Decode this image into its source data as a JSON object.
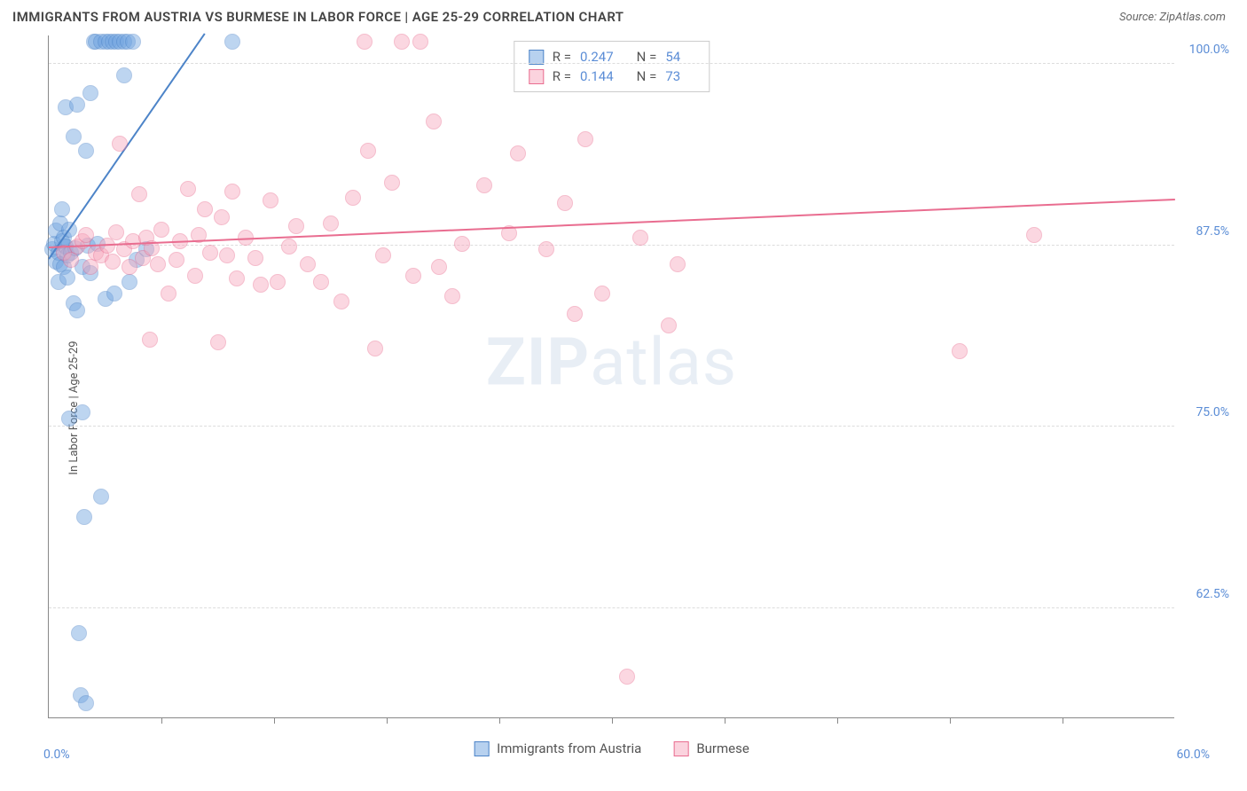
{
  "title": "IMMIGRANTS FROM AUSTRIA VS BURMESE IN LABOR FORCE | AGE 25-29 CORRELATION CHART",
  "source": "Source: ZipAtlas.com",
  "ylabel": "In Labor Force | Age 25-29",
  "watermark_a": "ZIP",
  "watermark_b": "atlas",
  "chart": {
    "type": "scatter",
    "xlim": [
      0,
      60
    ],
    "ylim": [
      55,
      102
    ],
    "x_ticks_minor": [
      6,
      12,
      18,
      24,
      30,
      36,
      42,
      48,
      54
    ],
    "y_grid": [
      62.5,
      75.0,
      87.5,
      100.0
    ],
    "y_tick_labels": [
      "62.5%",
      "75.0%",
      "87.5%",
      "100.0%"
    ],
    "x_label_min": "0.0%",
    "x_label_max": "60.0%",
    "background_color": "#ffffff",
    "grid_color": "#dcdcdc",
    "marker_radius": 9,
    "marker_opacity": 0.45,
    "series": [
      {
        "name": "Immigrants from Austria",
        "color": "#6fa3e0",
        "stroke": "#4d84c8",
        "r": "0.247",
        "n": "54",
        "trend": {
          "x1": 0,
          "y1": 86.5,
          "x2": 8.3,
          "y2": 102
        },
        "points": [
          [
            0.2,
            87.2
          ],
          [
            0.3,
            87.6
          ],
          [
            0.4,
            86.4
          ],
          [
            0.4,
            88.5
          ],
          [
            0.5,
            87.0
          ],
          [
            0.5,
            85.0
          ],
          [
            0.6,
            89.0
          ],
          [
            0.6,
            86.2
          ],
          [
            0.7,
            87.8
          ],
          [
            0.7,
            90.0
          ],
          [
            0.8,
            86.0
          ],
          [
            0.8,
            88.0
          ],
          [
            0.9,
            87.4
          ],
          [
            0.9,
            97.0
          ],
          [
            1.0,
            86.8
          ],
          [
            1.0,
            85.3
          ],
          [
            1.1,
            88.6
          ],
          [
            1.1,
            75.6
          ],
          [
            1.2,
            87.0
          ],
          [
            1.3,
            95.0
          ],
          [
            1.3,
            83.5
          ],
          [
            1.4,
            87.3
          ],
          [
            1.5,
            97.2
          ],
          [
            1.5,
            83.0
          ],
          [
            1.6,
            60.8
          ],
          [
            1.7,
            56.5
          ],
          [
            1.8,
            86.0
          ],
          [
            1.8,
            76.0
          ],
          [
            1.9,
            68.8
          ],
          [
            2.0,
            94.0
          ],
          [
            2.0,
            56.0
          ],
          [
            2.1,
            87.5
          ],
          [
            2.2,
            98.0
          ],
          [
            2.2,
            85.6
          ],
          [
            2.4,
            101.5
          ],
          [
            2.5,
            101.5
          ],
          [
            2.6,
            87.6
          ],
          [
            2.8,
            101.5
          ],
          [
            2.8,
            70.2
          ],
          [
            3.0,
            101.5
          ],
          [
            3.0,
            83.8
          ],
          [
            3.2,
            101.5
          ],
          [
            3.4,
            101.5
          ],
          [
            3.5,
            84.2
          ],
          [
            3.6,
            101.5
          ],
          [
            3.8,
            101.5
          ],
          [
            4.0,
            99.2
          ],
          [
            4.0,
            101.5
          ],
          [
            4.2,
            101.5
          ],
          [
            4.3,
            85.0
          ],
          [
            4.5,
            101.5
          ],
          [
            4.7,
            86.5
          ],
          [
            5.2,
            87.2
          ],
          [
            9.8,
            101.5
          ]
        ]
      },
      {
        "name": "Burmese",
        "color": "#f7a8bd",
        "stroke": "#e96d90",
        "r": "0.144",
        "n": "73",
        "trend": {
          "x1": 0,
          "y1": 87.3,
          "x2": 60,
          "y2": 90.6
        },
        "points": [
          [
            0.8,
            87.0
          ],
          [
            1.2,
            86.5
          ],
          [
            1.5,
            87.4
          ],
          [
            1.8,
            87.8
          ],
          [
            2.0,
            88.2
          ],
          [
            2.2,
            86.0
          ],
          [
            2.5,
            87.0
          ],
          [
            2.8,
            86.8
          ],
          [
            3.1,
            87.5
          ],
          [
            3.4,
            86.4
          ],
          [
            3.6,
            88.4
          ],
          [
            3.8,
            94.5
          ],
          [
            4.0,
            87.2
          ],
          [
            4.3,
            86.0
          ],
          [
            4.5,
            87.8
          ],
          [
            4.8,
            91.0
          ],
          [
            5.0,
            86.6
          ],
          [
            5.2,
            88.0
          ],
          [
            5.4,
            81.0
          ],
          [
            5.5,
            87.3
          ],
          [
            5.8,
            86.2
          ],
          [
            6.0,
            88.6
          ],
          [
            6.4,
            84.2
          ],
          [
            6.8,
            86.5
          ],
          [
            7.0,
            87.8
          ],
          [
            7.4,
            91.4
          ],
          [
            7.8,
            85.4
          ],
          [
            8.0,
            88.2
          ],
          [
            8.3,
            90.0
          ],
          [
            8.6,
            87.0
          ],
          [
            9.0,
            80.8
          ],
          [
            9.2,
            89.4
          ],
          [
            9.5,
            86.8
          ],
          [
            9.8,
            91.2
          ],
          [
            10.0,
            85.2
          ],
          [
            10.5,
            88.0
          ],
          [
            11.0,
            86.6
          ],
          [
            11.3,
            84.8
          ],
          [
            11.8,
            90.6
          ],
          [
            12.2,
            85.0
          ],
          [
            12.8,
            87.4
          ],
          [
            13.2,
            88.8
          ],
          [
            13.8,
            86.2
          ],
          [
            14.5,
            85.0
          ],
          [
            15.0,
            89.0
          ],
          [
            15.6,
            83.6
          ],
          [
            16.2,
            90.8
          ],
          [
            16.8,
            101.5
          ],
          [
            17.0,
            94.0
          ],
          [
            17.4,
            80.4
          ],
          [
            17.8,
            86.8
          ],
          [
            18.3,
            91.8
          ],
          [
            18.8,
            101.5
          ],
          [
            19.4,
            85.4
          ],
          [
            19.8,
            101.5
          ],
          [
            20.5,
            96.0
          ],
          [
            20.8,
            86.0
          ],
          [
            21.5,
            84.0
          ],
          [
            22.0,
            87.6
          ],
          [
            23.2,
            91.6
          ],
          [
            24.5,
            88.3
          ],
          [
            25.0,
            93.8
          ],
          [
            26.5,
            87.2
          ],
          [
            27.5,
            90.4
          ],
          [
            28.0,
            82.8
          ],
          [
            28.6,
            94.8
          ],
          [
            29.5,
            84.2
          ],
          [
            30.8,
            57.8
          ],
          [
            31.5,
            88.0
          ],
          [
            33.0,
            82.0
          ],
          [
            33.5,
            86.2
          ],
          [
            48.5,
            80.2
          ],
          [
            52.5,
            88.2
          ]
        ]
      }
    ]
  }
}
